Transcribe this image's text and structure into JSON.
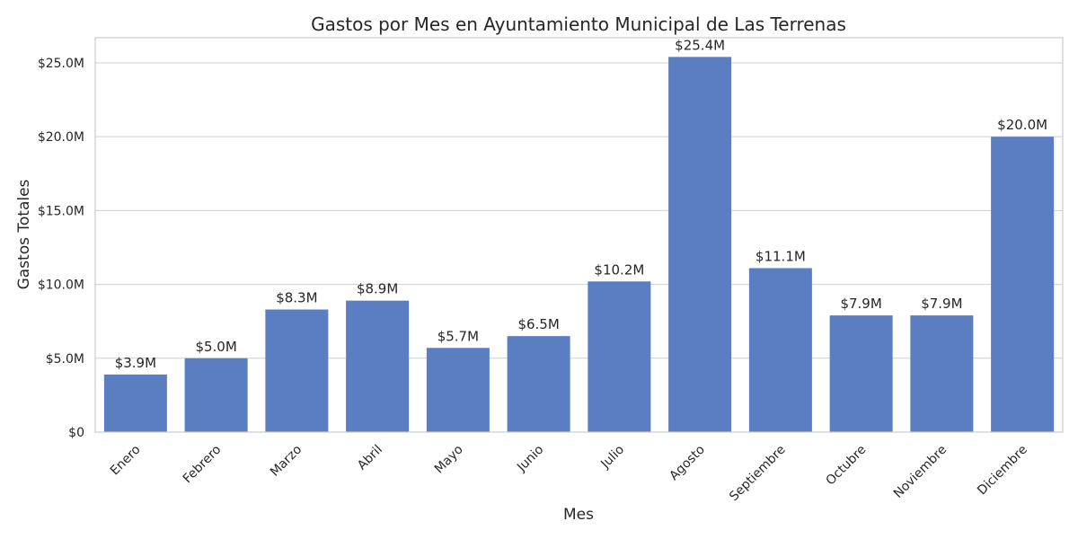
{
  "chart_data": {
    "type": "bar",
    "title": "Gastos por Mes en Ayuntamiento Municipal de Las Terrenas",
    "xlabel": "Mes",
    "ylabel": "Gastos Totales",
    "categories": [
      "Enero",
      "Febrero",
      "Marzo",
      "Abril",
      "Mayo",
      "Junio",
      "Julio",
      "Agosto",
      "Septiembre",
      "Octubre",
      "Noviembre",
      "Diciembre"
    ],
    "values": [
      3.9,
      5.0,
      8.3,
      8.9,
      5.7,
      6.5,
      10.2,
      25.4,
      11.1,
      7.9,
      7.9,
      20.0
    ],
    "value_labels": [
      "$3.9M",
      "$5.0M",
      "$8.3M",
      "$8.9M",
      "$5.7M",
      "$6.5M",
      "$10.2M",
      "$25.4M",
      "$11.1M",
      "$7.9M",
      "$7.9M",
      "$20.0M"
    ],
    "value_unit": "millions USD",
    "ylim": [
      0,
      26.7
    ],
    "yticks": [
      0,
      5,
      10,
      15,
      20,
      25
    ],
    "ytick_labels": [
      "$0",
      "$5.0M",
      "$10.0M",
      "$15.0M",
      "$20.0M",
      "$25.0M"
    ],
    "bar_color": "#5b7ec2",
    "grid": "horizontal",
    "xtick_rotation": "45 degrees"
  }
}
